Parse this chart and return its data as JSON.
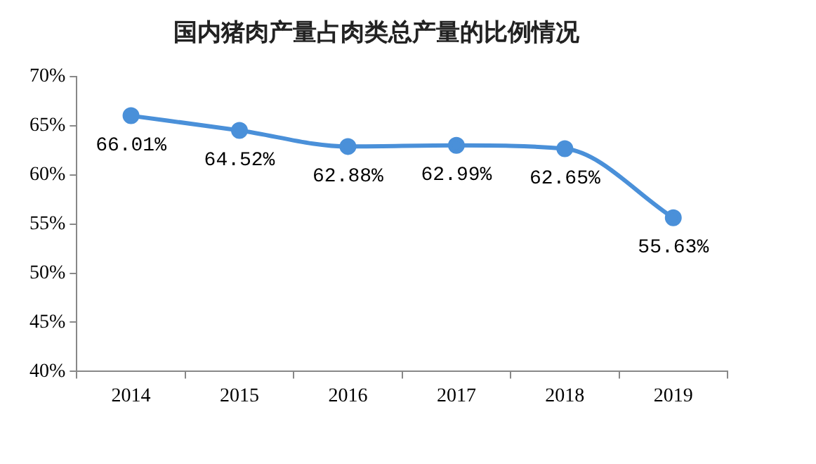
{
  "chart_data": {
    "type": "line",
    "title": "国内猪肉产量占肉类总产量的比例情况",
    "categories": [
      "2014",
      "2015",
      "2016",
      "2017",
      "2018",
      "2019"
    ],
    "series": [
      {
        "color": "#4a90d9",
        "values": [
          66.01,
          64.52,
          62.88,
          62.99,
          62.65,
          55.63
        ],
        "value_labels": [
          "66.01%",
          "64.52%",
          "62.88%",
          "62.99%",
          "62.65%",
          "55.63%"
        ]
      }
    ],
    "ylim": [
      40,
      70
    ],
    "yticks": [
      {
        "value": 40,
        "label": "40%"
      },
      {
        "value": 45,
        "label": "45%"
      },
      {
        "value": 50,
        "label": "50%"
      },
      {
        "value": 55,
        "label": "55%"
      },
      {
        "value": 60,
        "label": "60%"
      },
      {
        "value": 65,
        "label": "65%"
      },
      {
        "value": 70,
        "label": "70%"
      }
    ],
    "grid": false,
    "legend": false,
    "marker": "circle",
    "line_style": "solid"
  }
}
